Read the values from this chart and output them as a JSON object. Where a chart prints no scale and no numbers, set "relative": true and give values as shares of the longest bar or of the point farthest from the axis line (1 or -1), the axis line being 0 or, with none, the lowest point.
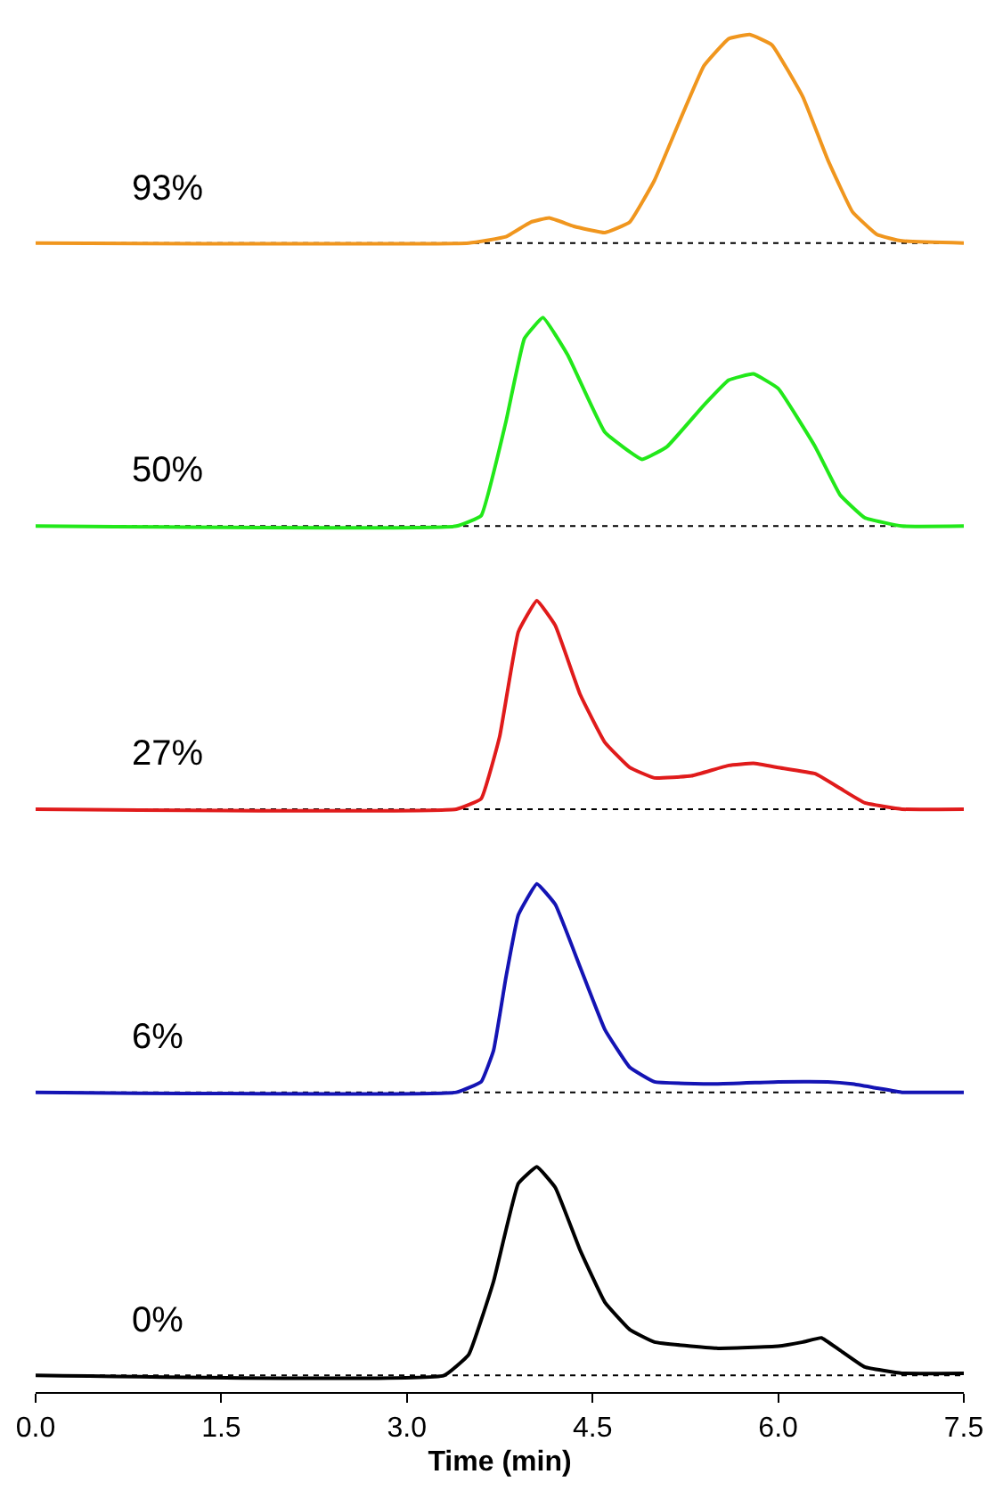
{
  "chart_data": [
    {
      "type": "line",
      "relative": true,
      "annotations": [
        "93%"
      ],
      "tick_labels": false,
      "xlim": [
        0,
        7.5
      ],
      "grid": false,
      "marker": "none",
      "line_style": "solid",
      "ref_lines": [
        {
          "axis": "y",
          "value": 0,
          "label": null,
          "line_style": "dotted",
          "color": "#000000"
        }
      ],
      "series": [
        {
          "color": "#f0961e",
          "x": [
            0,
            3.5,
            3.8,
            4.0,
            4.15,
            4.35,
            4.6,
            4.8,
            5.0,
            5.2,
            5.4,
            5.6,
            5.77,
            5.95,
            6.2,
            6.4,
            6.6,
            6.8,
            7.0,
            7.5
          ],
          "values": [
            0,
            0,
            0.03,
            0.1,
            0.12,
            0.08,
            0.05,
            0.1,
            0.3,
            0.58,
            0.85,
            0.98,
            1.0,
            0.95,
            0.7,
            0.4,
            0.15,
            0.04,
            0.01,
            0
          ]
        }
      ]
    },
    {
      "type": "line",
      "relative": true,
      "annotations": [
        "50%"
      ],
      "tick_labels": false,
      "xlim": [
        0,
        7.5
      ],
      "grid": false,
      "marker": "none",
      "line_style": "solid",
      "ref_lines": [
        {
          "axis": "y",
          "value": 0,
          "label": null,
          "line_style": "dotted",
          "color": "#000000"
        }
      ],
      "series": [
        {
          "color": "#22e81a",
          "x": [
            0,
            3.4,
            3.6,
            3.8,
            3.95,
            4.1,
            4.3,
            4.6,
            4.9,
            5.1,
            5.4,
            5.6,
            5.8,
            6.0,
            6.3,
            6.5,
            6.7,
            7.0,
            7.5
          ],
          "values": [
            0,
            0,
            0.05,
            0.5,
            0.9,
            1.0,
            0.82,
            0.45,
            0.32,
            0.38,
            0.58,
            0.7,
            0.73,
            0.66,
            0.38,
            0.15,
            0.04,
            0,
            0
          ]
        }
      ]
    },
    {
      "type": "line",
      "relative": true,
      "annotations": [
        "27%"
      ],
      "tick_labels": false,
      "xlim": [
        0,
        7.5
      ],
      "grid": false,
      "marker": "none",
      "line_style": "solid",
      "ref_lines": [
        {
          "axis": "y",
          "value": 0,
          "label": null,
          "line_style": "dotted",
          "color": "#000000"
        }
      ],
      "series": [
        {
          "color": "#e01b1b",
          "x": [
            0,
            3.4,
            3.6,
            3.75,
            3.9,
            4.05,
            4.2,
            4.4,
            4.6,
            4.8,
            5.0,
            5.3,
            5.6,
            5.8,
            6.0,
            6.3,
            6.5,
            6.7,
            7.0,
            7.5
          ],
          "values": [
            0,
            0,
            0.05,
            0.35,
            0.85,
            1.0,
            0.88,
            0.55,
            0.32,
            0.2,
            0.15,
            0.16,
            0.21,
            0.22,
            0.2,
            0.17,
            0.1,
            0.03,
            0,
            0
          ]
        }
      ]
    },
    {
      "type": "line",
      "relative": true,
      "annotations": [
        "6%"
      ],
      "tick_labels": false,
      "xlim": [
        0,
        7.5
      ],
      "grid": false,
      "marker": "none",
      "line_style": "solid",
      "ref_lines": [
        {
          "axis": "y",
          "value": 0,
          "label": null,
          "line_style": "dotted",
          "color": "#000000"
        }
      ],
      "series": [
        {
          "color": "#1414b4",
          "x": [
            0,
            3.4,
            3.6,
            3.7,
            3.8,
            3.9,
            4.05,
            4.2,
            4.4,
            4.6,
            4.8,
            5.0,
            5.5,
            6.0,
            6.4,
            6.6,
            6.8,
            7.0,
            7.5
          ],
          "values": [
            0,
            0,
            0.05,
            0.2,
            0.55,
            0.85,
            1.0,
            0.9,
            0.6,
            0.3,
            0.12,
            0.05,
            0.04,
            0.05,
            0.05,
            0.04,
            0.02,
            0,
            0
          ]
        }
      ]
    },
    {
      "type": "line",
      "relative": true,
      "annotations": [
        "0%"
      ],
      "tick_labels": "x",
      "xlabel": "Time (min)",
      "xlim": [
        0,
        7.5
      ],
      "grid": false,
      "marker": "none",
      "line_style": "solid",
      "xticks": [
        {
          "value": 0,
          "label": "0.0"
        },
        {
          "value": 1.5,
          "label": "1.5"
        },
        {
          "value": 3,
          "label": "3.0"
        },
        {
          "value": 4.5,
          "label": "4.5"
        },
        {
          "value": 6,
          "label": "6.0"
        },
        {
          "value": 7.5,
          "label": "7.5"
        }
      ],
      "ref_lines": [
        {
          "axis": "y",
          "value": 0,
          "label": null,
          "line_style": "dotted",
          "color": "#000000"
        }
      ],
      "series": [
        {
          "color": "#000000",
          "x": [
            0,
            3.3,
            3.5,
            3.7,
            3.9,
            4.05,
            4.2,
            4.4,
            4.6,
            4.8,
            5.0,
            5.5,
            6.0,
            6.2,
            6.35,
            6.5,
            6.7,
            7.0,
            7.5
          ],
          "values": [
            0,
            0,
            0.1,
            0.45,
            0.92,
            1.0,
            0.9,
            0.6,
            0.35,
            0.22,
            0.16,
            0.13,
            0.14,
            0.16,
            0.18,
            0.12,
            0.04,
            0.01,
            0.01
          ]
        }
      ]
    }
  ]
}
